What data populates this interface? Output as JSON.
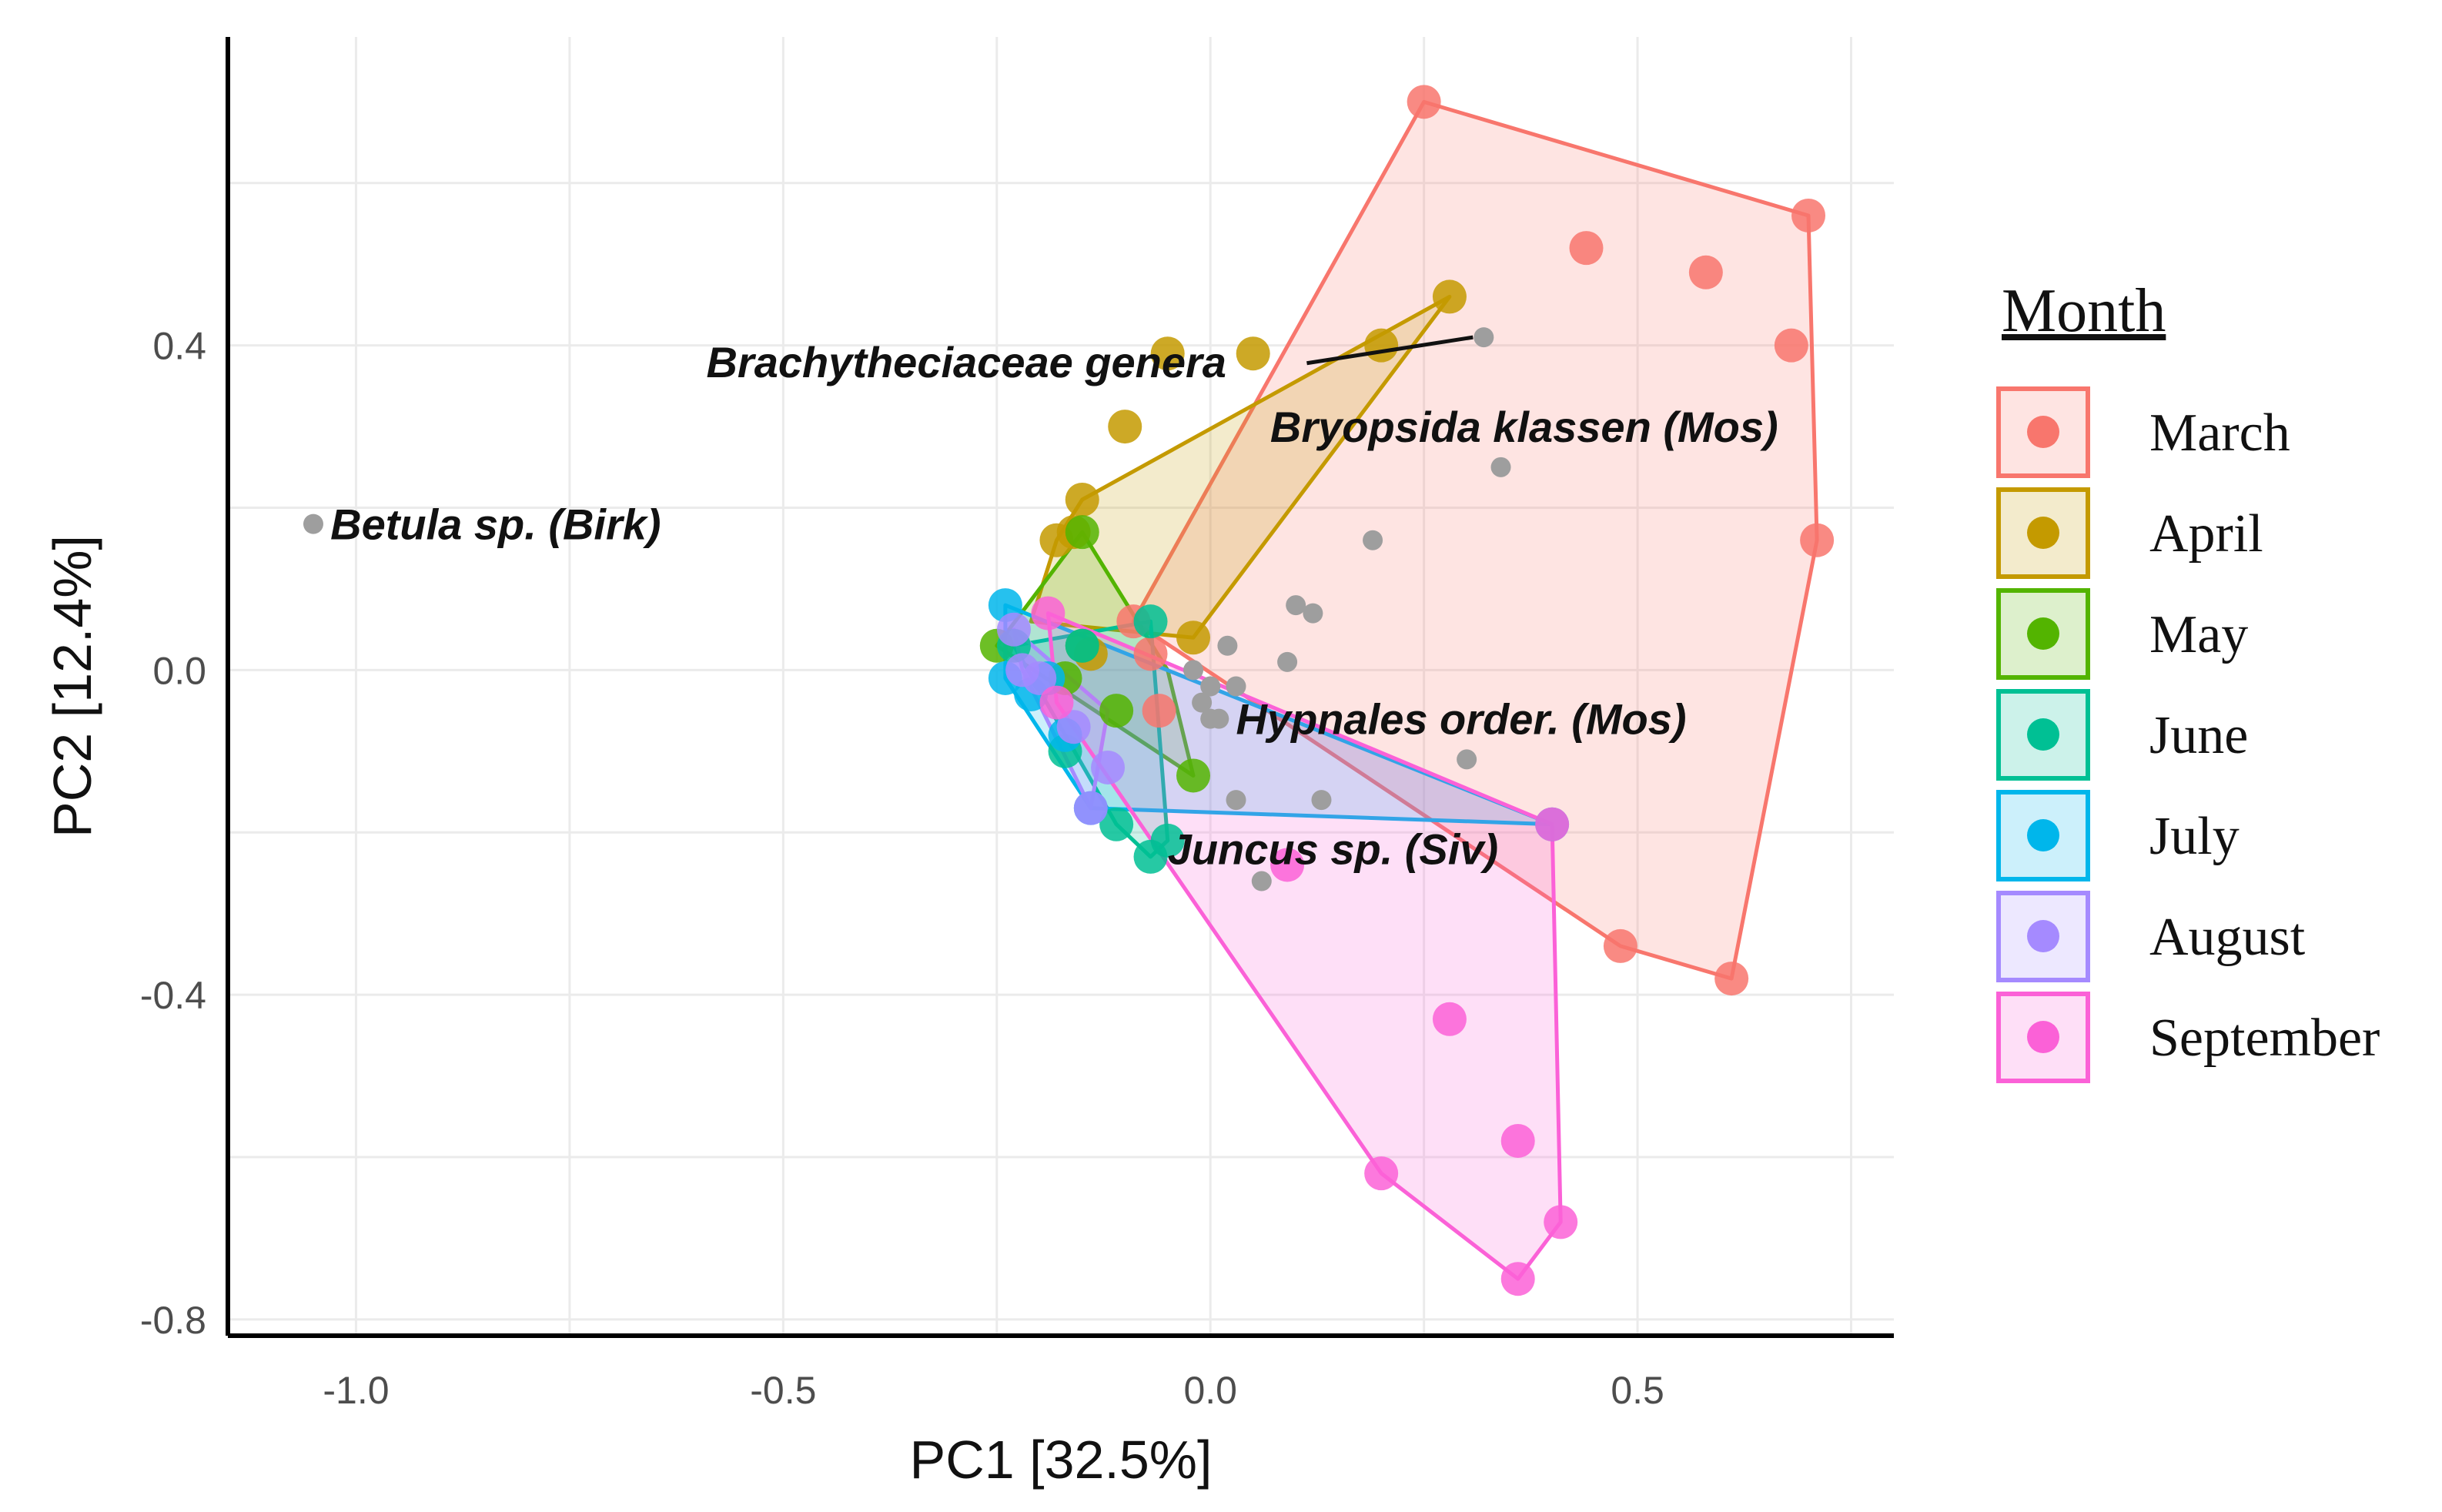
{
  "chart_data": {
    "type": "scatter",
    "subtype": "PCA biplot with convex hulls per group",
    "title": "",
    "xlabel": "PC1 [32.5%]",
    "ylabel": "PC2 [12.4%]",
    "xlim": [
      -1.15,
      0.8
    ],
    "ylim": [
      -0.82,
      0.78
    ],
    "xticks": [
      -1.0,
      -0.5,
      0.0,
      0.5
    ],
    "xtick_labels": [
      "-1.0",
      "-0.5",
      "0.0",
      "0.5"
    ],
    "yticks": [
      -0.8,
      -0.4,
      0.0,
      0.4
    ],
    "ytick_labels": [
      "-0.8",
      "-0.4",
      "0.0",
      "0.4"
    ],
    "grid": true,
    "legend": {
      "title": "Month",
      "placement": "right"
    },
    "series": [
      {
        "name": "March",
        "color": "#F8766D",
        "points": [
          [
            0.25,
            0.7
          ],
          [
            0.7,
            0.56
          ],
          [
            0.71,
            0.16
          ],
          [
            0.61,
            -0.38
          ],
          [
            0.48,
            -0.34
          ],
          [
            0.44,
            0.52
          ],
          [
            0.58,
            0.49
          ],
          [
            0.68,
            0.4
          ],
          [
            -0.09,
            0.06
          ],
          [
            -0.07,
            0.02
          ],
          [
            -0.06,
            -0.05
          ]
        ],
        "hull": [
          [
            0.25,
            0.7
          ],
          [
            0.7,
            0.56
          ],
          [
            0.71,
            0.16
          ],
          [
            0.61,
            -0.38
          ],
          [
            0.48,
            -0.34
          ],
          [
            -0.09,
            0.06
          ]
        ]
      },
      {
        "name": "April",
        "color": "#C49A00",
        "points": [
          [
            0.28,
            0.46
          ],
          [
            0.2,
            0.4
          ],
          [
            0.05,
            0.39
          ],
          [
            -0.05,
            0.39
          ],
          [
            -0.1,
            0.3
          ],
          [
            -0.15,
            0.21
          ],
          [
            -0.18,
            0.16
          ],
          [
            -0.16,
            0.17
          ],
          [
            -0.02,
            0.04
          ],
          [
            -0.14,
            0.02
          ]
        ],
        "hull": [
          [
            0.28,
            0.46
          ],
          [
            -0.02,
            0.04
          ],
          [
            -0.21,
            0.06
          ],
          [
            -0.18,
            0.16
          ],
          [
            -0.15,
            0.21
          ]
        ]
      },
      {
        "name": "May",
        "color": "#53B400",
        "points": [
          [
            -0.15,
            0.17
          ],
          [
            -0.25,
            0.03
          ],
          [
            -0.15,
            0.03
          ],
          [
            -0.11,
            -0.05
          ],
          [
            -0.02,
            -0.13
          ],
          [
            -0.17,
            -0.01
          ]
        ],
        "hull": [
          [
            -0.15,
            0.17
          ],
          [
            -0.05,
            0.0
          ],
          [
            -0.02,
            -0.13
          ],
          [
            -0.25,
            0.03
          ]
        ]
      },
      {
        "name": "June",
        "color": "#00C094",
        "points": [
          [
            -0.07,
            0.06
          ],
          [
            -0.23,
            0.03
          ],
          [
            -0.17,
            -0.1
          ],
          [
            -0.11,
            -0.19
          ],
          [
            -0.07,
            -0.23
          ],
          [
            -0.05,
            -0.21
          ],
          [
            -0.15,
            0.03
          ]
        ],
        "hull": [
          [
            -0.07,
            0.06
          ],
          [
            -0.05,
            -0.21
          ],
          [
            -0.07,
            -0.23
          ],
          [
            -0.11,
            -0.19
          ],
          [
            -0.23,
            0.03
          ]
        ]
      },
      {
        "name": "July",
        "color": "#00B6EB",
        "points": [
          [
            -0.24,
            0.08
          ],
          [
            -0.24,
            -0.01
          ],
          [
            -0.21,
            -0.03
          ],
          [
            -0.17,
            -0.08
          ],
          [
            -0.14,
            -0.17
          ],
          [
            0.4,
            -0.19
          ],
          [
            -0.19,
            -0.01
          ]
        ],
        "hull": [
          [
            -0.24,
            0.08
          ],
          [
            0.4,
            -0.19
          ],
          [
            -0.14,
            -0.17
          ],
          [
            -0.24,
            -0.01
          ]
        ]
      },
      {
        "name": "August",
        "color": "#A58AFF",
        "points": [
          [
            -0.23,
            0.05
          ],
          [
            -0.22,
            0.0
          ],
          [
            -0.2,
            -0.01
          ],
          [
            -0.16,
            -0.07
          ],
          [
            -0.12,
            -0.12
          ],
          [
            -0.14,
            -0.17
          ]
        ],
        "hull": [
          [
            -0.23,
            0.05
          ],
          [
            -0.12,
            -0.05
          ],
          [
            -0.14,
            -0.17
          ],
          [
            -0.22,
            0.0
          ]
        ]
      },
      {
        "name": "September",
        "color": "#FB61D7",
        "points": [
          [
            -0.19,
            0.07
          ],
          [
            0.4,
            -0.19
          ],
          [
            0.41,
            -0.68
          ],
          [
            0.36,
            -0.75
          ],
          [
            0.2,
            -0.62
          ],
          [
            0.28,
            -0.43
          ],
          [
            0.36,
            -0.58
          ],
          [
            0.09,
            -0.24
          ],
          [
            -0.18,
            -0.04
          ]
        ],
        "hull": [
          [
            -0.19,
            0.07
          ],
          [
            0.4,
            -0.19
          ],
          [
            0.41,
            -0.68
          ],
          [
            0.36,
            -0.75
          ],
          [
            0.2,
            -0.62
          ],
          [
            -0.18,
            -0.04
          ]
        ]
      }
    ],
    "species_points": [
      [
        -1.05,
        0.18
      ],
      [
        0.32,
        0.41
      ],
      [
        0.34,
        0.25
      ],
      [
        0.19,
        0.16
      ],
      [
        0.1,
        0.08
      ],
      [
        0.12,
        0.07
      ],
      [
        0.02,
        0.03
      ],
      [
        0.09,
        0.01
      ],
      [
        0.03,
        -0.02
      ],
      [
        -0.02,
        0.0
      ],
      [
        0.0,
        -0.02
      ],
      [
        0.0,
        -0.06
      ],
      [
        0.01,
        -0.06
      ],
      [
        0.3,
        -0.11
      ],
      [
        0.03,
        -0.16
      ],
      [
        0.13,
        -0.16
      ],
      [
        0.06,
        -0.26
      ],
      [
        -0.01,
        -0.04
      ]
    ],
    "species_color": "#9e9e9e",
    "annotations": [
      {
        "text": "Betula sp. (Birk)",
        "point": [
          -1.05,
          0.18
        ],
        "label_at": [
          -1.03,
          0.18
        ],
        "anchor": "start",
        "leader": false
      },
      {
        "text": "Brachytheciaceae genera",
        "point": [
          0.32,
          0.41
        ],
        "label_at": [
          -0.59,
          0.38
        ],
        "anchor": "start",
        "leader": true
      },
      {
        "text": "Bryopsida klassen (Mos)",
        "point": [
          0.34,
          0.25
        ],
        "label_at": [
          0.07,
          0.3
        ],
        "anchor": "start",
        "leader": false
      },
      {
        "text": "Hypnales order. (Mos)",
        "point": [
          0.3,
          -0.11
        ],
        "label_at": [
          0.03,
          -0.06
        ],
        "anchor": "start",
        "leader": false
      },
      {
        "text": "Juncus sp. (Siv)",
        "point": [
          0.06,
          -0.26
        ],
        "label_at": [
          -0.05,
          -0.22
        ],
        "anchor": "start",
        "leader": false
      }
    ]
  }
}
